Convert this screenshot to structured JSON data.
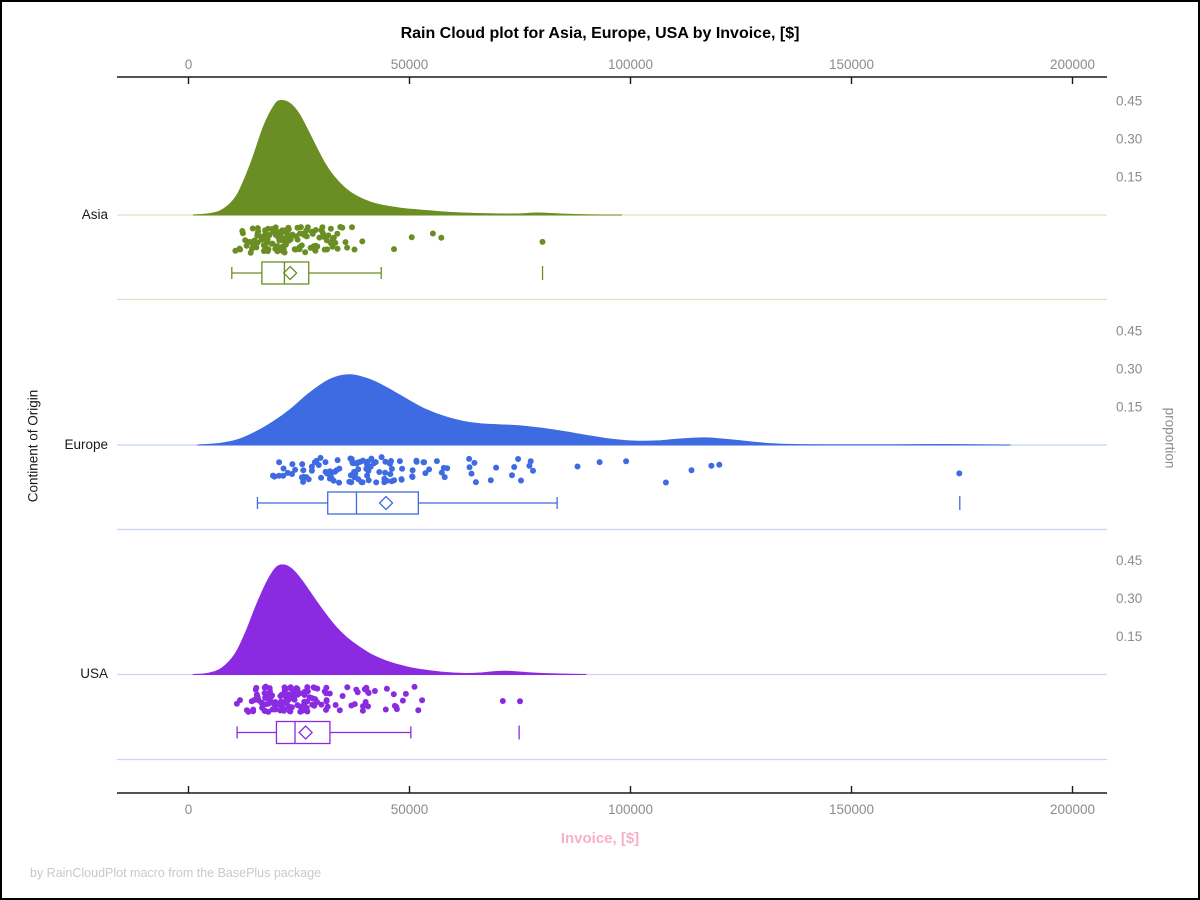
{
  "chart_data": {
    "type": "raincloud (half-violin density + jittered scatter + boxplot)",
    "title": "Rain Cloud plot for Asia, Europe, USA by Invoice, [$]",
    "xlabel": "Invoice, [$]",
    "ylabel_left": "Continent of Origin",
    "ylabel_right": "proportion",
    "footnote": "by RainCloudPlot macro from the BasePlus package",
    "x_axis": {
      "min": 0,
      "max": 200000,
      "ticks": [
        0,
        50000,
        100000,
        150000,
        200000
      ],
      "tick_labels": [
        "0",
        "50000",
        "100000",
        "150000",
        "200000"
      ],
      "position": "top and bottom"
    },
    "proportion_axis": {
      "ticks": [
        0.45,
        0.3,
        0.15
      ],
      "tick_labels": [
        "0.45",
        "0.30",
        "0.15"
      ],
      "position": "right, repeated per panel"
    },
    "colors": {
      "axis_line": "#1a1a1a",
      "tick_label": "#8c8c8c",
      "title": "#000000",
      "xlabel_pink": "#f9b0c4",
      "footnote_gray": "#c9c9c9",
      "category_label": "#1a1a1a",
      "box_fill": "#ffffff"
    },
    "groups": [
      {
        "name": "Asia",
        "color": "#6a8e23",
        "tint": "#dce5c5",
        "density": [
          [
            1000,
            0
          ],
          [
            5000,
            0.006
          ],
          [
            8000,
            0.025
          ],
          [
            11000,
            0.08
          ],
          [
            14000,
            0.2
          ],
          [
            17000,
            0.35
          ],
          [
            19500,
            0.435
          ],
          [
            21000,
            0.452
          ],
          [
            23000,
            0.44
          ],
          [
            25000,
            0.4
          ],
          [
            27000,
            0.335
          ],
          [
            29000,
            0.265
          ],
          [
            31000,
            0.2
          ],
          [
            33000,
            0.15
          ],
          [
            35500,
            0.105
          ],
          [
            38000,
            0.075
          ],
          [
            41000,
            0.052
          ],
          [
            44000,
            0.038
          ],
          [
            48000,
            0.027
          ],
          [
            52000,
            0.02
          ],
          [
            57000,
            0.013
          ],
          [
            62000,
            0.008
          ],
          [
            68000,
            0.005
          ],
          [
            74000,
            0.004
          ],
          [
            79000,
            0.008
          ],
          [
            84000,
            0.004
          ],
          [
            90000,
            0.001
          ],
          [
            98000,
            0
          ]
        ],
        "box": {
          "whisker_low": 9800,
          "q1": 16600,
          "median": 21700,
          "q3": 27200,
          "whisker_high": 43600,
          "mean": 23000,
          "outliers": [
            80100
          ]
        },
        "scatter": {
          "n": 132,
          "median": 21500,
          "log_sigma": 0.3,
          "min": 10500,
          "max": 50000,
          "seed": 7,
          "extra_points": [
            46500,
            50500,
            55300,
            57200,
            80100
          ]
        }
      },
      {
        "name": "Europe",
        "color": "#3e6be1",
        "tint": "#c7d3f3",
        "density": [
          [
            2000,
            0
          ],
          [
            7000,
            0.006
          ],
          [
            11000,
            0.02
          ],
          [
            15000,
            0.05
          ],
          [
            19000,
            0.09
          ],
          [
            23000,
            0.14
          ],
          [
            27000,
            0.2
          ],
          [
            31000,
            0.25
          ],
          [
            34000,
            0.272
          ],
          [
            36500,
            0.277
          ],
          [
            39000,
            0.27
          ],
          [
            42000,
            0.252
          ],
          [
            45000,
            0.225
          ],
          [
            48000,
            0.195
          ],
          [
            51000,
            0.165
          ],
          [
            54000,
            0.138
          ],
          [
            58000,
            0.112
          ],
          [
            62000,
            0.094
          ],
          [
            66000,
            0.084
          ],
          [
            70000,
            0.08
          ],
          [
            74000,
            0.077
          ],
          [
            78000,
            0.07
          ],
          [
            82000,
            0.061
          ],
          [
            86000,
            0.05
          ],
          [
            90000,
            0.038
          ],
          [
            94000,
            0.027
          ],
          [
            98000,
            0.019
          ],
          [
            102000,
            0.015
          ],
          [
            106000,
            0.016
          ],
          [
            110000,
            0.022
          ],
          [
            114000,
            0.027
          ],
          [
            117000,
            0.028
          ],
          [
            120000,
            0.025
          ],
          [
            124000,
            0.018
          ],
          [
            128000,
            0.011
          ],
          [
            132000,
            0.005
          ],
          [
            137000,
            0.002
          ],
          [
            145000,
            0.001
          ],
          [
            160000,
            0.001
          ],
          [
            170000,
            0.002
          ],
          [
            178000,
            0.001
          ],
          [
            186000,
            0
          ]
        ],
        "box": {
          "whisker_low": 15600,
          "q1": 31500,
          "median": 38000,
          "q3": 52000,
          "whisker_high": 83400,
          "mean": 44700,
          "outliers": [
            174500
          ]
        },
        "scatter": {
          "n": 115,
          "median": 38000,
          "log_sigma": 0.38,
          "min": 15500,
          "max": 105000,
          "seed": 13,
          "extra_points": [
            88000,
            93000,
            99000,
            108000,
            113800,
            118300,
            120100,
            174400
          ]
        }
      },
      {
        "name": "USA",
        "color": "#8a2be2",
        "tint": "#e0c9f3",
        "density": [
          [
            1000,
            0
          ],
          [
            4500,
            0.005
          ],
          [
            7500,
            0.025
          ],
          [
            10500,
            0.08
          ],
          [
            13000,
            0.17
          ],
          [
            15500,
            0.28
          ],
          [
            18000,
            0.375
          ],
          [
            20000,
            0.425
          ],
          [
            21800,
            0.432
          ],
          [
            23500,
            0.415
          ],
          [
            25500,
            0.375
          ],
          [
            27500,
            0.325
          ],
          [
            29500,
            0.275
          ],
          [
            31500,
            0.228
          ],
          [
            33500,
            0.185
          ],
          [
            36000,
            0.143
          ],
          [
            38500,
            0.11
          ],
          [
            41000,
            0.083
          ],
          [
            43500,
            0.062
          ],
          [
            46000,
            0.046
          ],
          [
            48500,
            0.034
          ],
          [
            51000,
            0.024
          ],
          [
            54000,
            0.016
          ],
          [
            57000,
            0.01
          ],
          [
            60000,
            0.006
          ],
          [
            63000,
            0.004
          ],
          [
            66000,
            0.006
          ],
          [
            69000,
            0.011
          ],
          [
            71500,
            0.013
          ],
          [
            74000,
            0.011
          ],
          [
            77000,
            0.007
          ],
          [
            80000,
            0.004
          ],
          [
            84000,
            0.002
          ],
          [
            90000,
            0
          ]
        ],
        "box": {
          "whisker_low": 11000,
          "q1": 19900,
          "median": 24100,
          "q3": 32000,
          "whisker_high": 50300,
          "mean": 26500,
          "outliers": [
            74800
          ]
        },
        "scatter": {
          "n": 135,
          "median": 24000,
          "log_sigma": 0.32,
          "min": 10500,
          "max": 55000,
          "seed": 29,
          "extra_points": [
            48500,
            52000,
            71100,
            75000
          ]
        }
      }
    ],
    "layout_hints": {
      "grid": "off",
      "panel_baseline_and_separator_lines": "light tint of group color",
      "box_style": "white fill, colored stroke, open diamond = mean, vertical dash = far outlier"
    }
  }
}
